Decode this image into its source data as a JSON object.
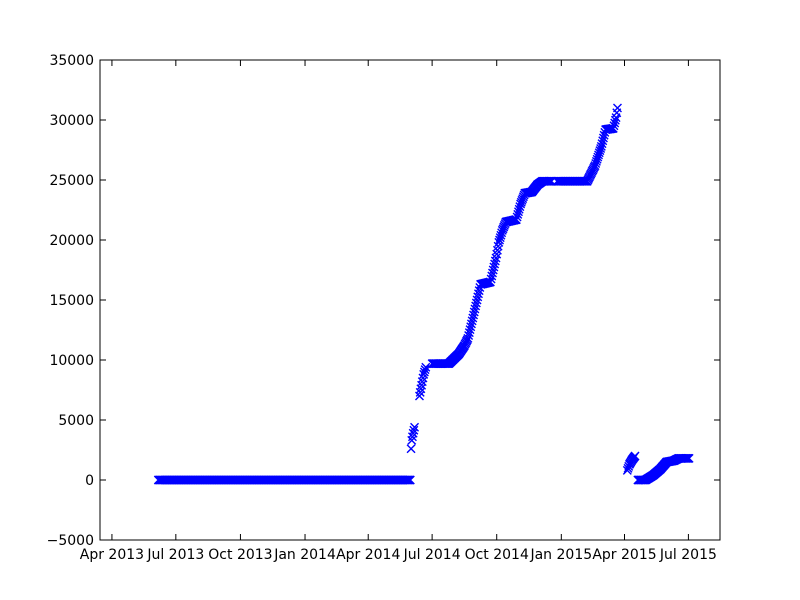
{
  "chart_data": {
    "type": "scatter",
    "marker": "x",
    "color": "#0000ff",
    "title": "",
    "xlabel": "",
    "ylabel": "",
    "xlim": [
      "2013-03-15",
      "2015-08-15"
    ],
    "ylim": [
      -5000,
      35000
    ],
    "grid": false,
    "x_ticks": [
      {
        "date": "2013-04-01",
        "label": "Apr 2013"
      },
      {
        "date": "2013-07-01",
        "label": "Jul 2013"
      },
      {
        "date": "2013-10-01",
        "label": "Oct 2013"
      },
      {
        "date": "2014-01-01",
        "label": "Jan 2014"
      },
      {
        "date": "2014-04-01",
        "label": "Apr 2014"
      },
      {
        "date": "2014-07-01",
        "label": "Jul 2014"
      },
      {
        "date": "2014-10-01",
        "label": "Oct 2014"
      },
      {
        "date": "2015-01-01",
        "label": "Jan 2015"
      },
      {
        "date": "2015-04-01",
        "label": "Apr 2015"
      },
      {
        "date": "2015-07-01",
        "label": "Jul 2015"
      }
    ],
    "y_ticks": [
      -5000,
      0,
      5000,
      10000,
      15000,
      20000,
      25000,
      30000,
      35000
    ],
    "segments": [
      {
        "points": [
          [
            "2013-06-06",
            0
          ],
          [
            "2014-05-31",
            0
          ]
        ]
      },
      {
        "points": [
          [
            "2014-06-01",
            2600
          ],
          [
            "2014-06-02",
            3300
          ],
          [
            "2014-06-04",
            3900
          ],
          [
            "2014-06-06",
            4400
          ]
        ]
      },
      {
        "points": [
          [
            "2014-06-13",
            7000
          ],
          [
            "2014-06-15",
            7600
          ],
          [
            "2014-06-17",
            8200
          ],
          [
            "2014-06-19",
            8800
          ],
          [
            "2014-06-22",
            9400
          ]
        ]
      },
      {
        "points": [
          [
            "2014-07-01",
            9700
          ],
          [
            "2014-07-25",
            9700
          ],
          [
            "2014-08-01",
            10100
          ],
          [
            "2014-08-08",
            10500
          ],
          [
            "2014-08-16",
            11200
          ],
          [
            "2014-08-21",
            11800
          ],
          [
            "2014-08-28",
            13500
          ],
          [
            "2014-09-03",
            15000
          ],
          [
            "2014-09-08",
            16300
          ],
          [
            "2014-09-22",
            16500
          ],
          [
            "2014-09-30",
            18500
          ],
          [
            "2014-10-04",
            19800
          ],
          [
            "2014-10-09",
            20800
          ],
          [
            "2014-10-14",
            21500
          ],
          [
            "2014-10-29",
            21700
          ],
          [
            "2014-11-04",
            23000
          ],
          [
            "2014-11-10",
            23900
          ],
          [
            "2014-11-20",
            24000
          ],
          [
            "2014-11-28",
            24600
          ],
          [
            "2014-12-05",
            24900
          ],
          [
            "2014-12-18",
            24900
          ]
        ]
      },
      {
        "points": [
          [
            "2014-12-26",
            24900
          ],
          [
            "2015-02-07",
            24900
          ],
          [
            "2015-02-18",
            26200
          ],
          [
            "2015-02-27",
            27800
          ],
          [
            "2015-03-05",
            29200
          ],
          [
            "2015-03-16",
            29300
          ],
          [
            "2015-03-20",
            30200
          ],
          [
            "2015-03-22",
            31000
          ]
        ]
      },
      {
        "points": [
          [
            "2015-04-05",
            800
          ],
          [
            "2015-04-08",
            1300
          ],
          [
            "2015-04-12",
            1700
          ],
          [
            "2015-04-16",
            2000
          ]
        ]
      },
      {
        "points": [
          [
            "2015-04-20",
            0
          ],
          [
            "2015-05-01",
            0
          ],
          [
            "2015-05-12",
            400
          ],
          [
            "2015-05-22",
            900
          ],
          [
            "2015-05-31",
            1500
          ],
          [
            "2015-06-10",
            1600
          ],
          [
            "2015-06-17",
            1800
          ],
          [
            "2015-07-02",
            1800
          ]
        ]
      }
    ]
  }
}
